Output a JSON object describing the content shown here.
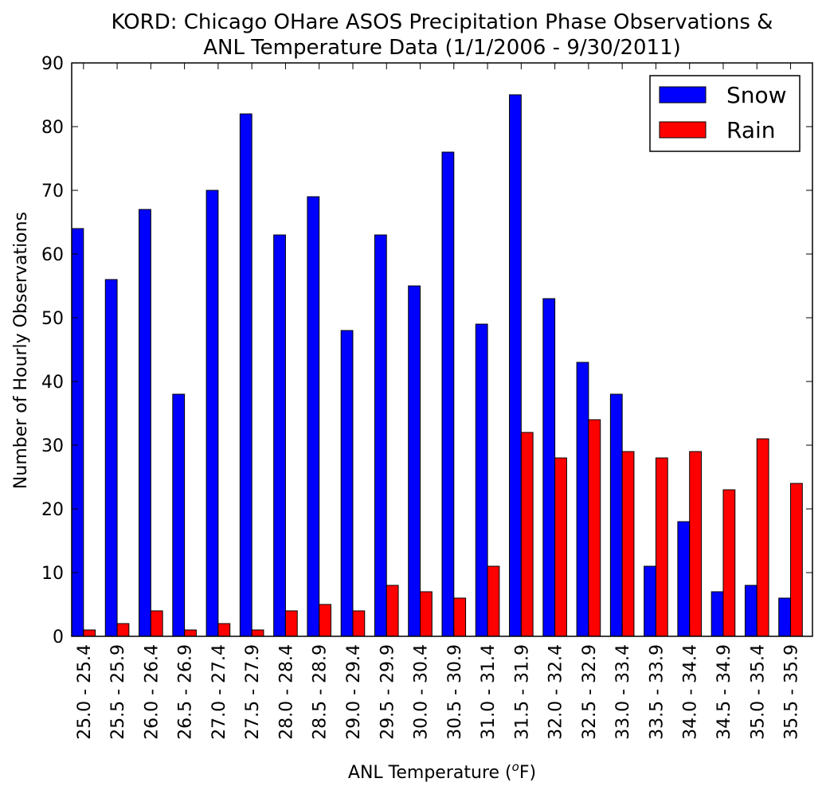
{
  "chart_data": {
    "type": "bar",
    "title_line1": "KORD: Chicago OHare ASOS Precipitation Phase Observations &",
    "title_line2": "ANL Temperature Data (1/1/2006 - 9/30/2011)",
    "xlabel": "ANL Temperature (",
    "xlabel_unit_sup": "o",
    "xlabel_unit_end": "F)",
    "ylabel": "Number of Hourly Observations",
    "ylim": [
      0,
      90
    ],
    "yticks": [
      "0",
      "10",
      "20",
      "30",
      "40",
      "50",
      "60",
      "70",
      "80",
      "90"
    ],
    "categories": [
      "25.0 - 25.4",
      "25.5 - 25.9",
      "26.0 - 26.4",
      "26.5 - 26.9",
      "27.0 - 27.4",
      "27.5 - 27.9",
      "28.0 - 28.4",
      "28.5 - 28.9",
      "29.0 - 29.4",
      "29.5 - 29.9",
      "30.0 - 30.4",
      "30.5 - 30.9",
      "31.0 - 31.4",
      "31.5 - 31.9",
      "32.0 - 32.4",
      "32.5 - 32.9",
      "33.0 - 33.4",
      "33.5 - 33.9",
      "34.0 - 34.4",
      "34.5 - 34.9",
      "35.0 - 35.4",
      "35.5 - 35.9"
    ],
    "series": [
      {
        "name": "Snow",
        "color": "#0000ff",
        "values": [
          64,
          56,
          67,
          38,
          70,
          82,
          63,
          69,
          48,
          63,
          55,
          76,
          49,
          85,
          53,
          43,
          38,
          11,
          18,
          7,
          8,
          6
        ]
      },
      {
        "name": "Rain",
        "color": "#ff0000",
        "values": [
          1,
          2,
          4,
          1,
          2,
          1,
          4,
          5,
          4,
          8,
          7,
          6,
          11,
          32,
          28,
          34,
          29,
          28,
          29,
          23,
          31,
          24
        ]
      }
    ],
    "legend_position": "top-right",
    "grid": false
  }
}
